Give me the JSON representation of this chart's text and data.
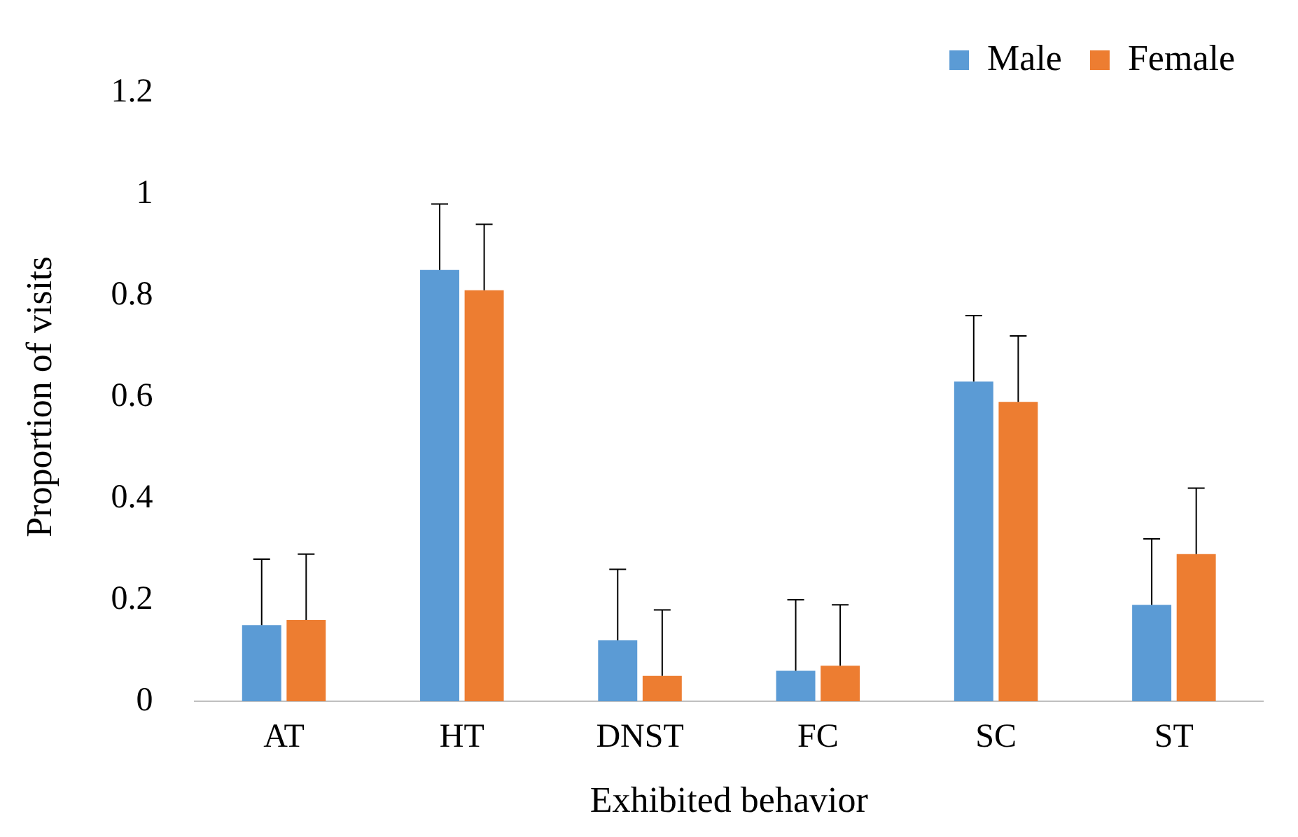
{
  "chart_data": {
    "type": "bar",
    "xlabel": "Exhibited behavior",
    "ylabel": "Proportion of visits",
    "categories": [
      "AT",
      "HT",
      "DNST",
      "FC",
      "SC",
      "ST"
    ],
    "series": [
      {
        "name": "Male",
        "color": "#5b9bd5",
        "values": [
          0.15,
          0.85,
          0.12,
          0.06,
          0.63,
          0.19
        ],
        "errors": [
          [
            0.15,
            0.28
          ],
          [
            0.85,
            0.98
          ],
          [
            0.12,
            0.26
          ],
          [
            0.06,
            0.2
          ],
          [
            0.63,
            0.76
          ],
          [
            0.19,
            0.32
          ]
        ]
      },
      {
        "name": "Female",
        "color": "#ed7d31",
        "values": [
          0.16,
          0.81,
          0.05,
          0.07,
          0.59,
          0.29
        ],
        "errors": [
          [
            0.16,
            0.29
          ],
          [
            0.81,
            0.94
          ],
          [
            0.05,
            0.18
          ],
          [
            0.07,
            0.19
          ],
          [
            0.59,
            0.72
          ],
          [
            0.29,
            0.42
          ]
        ]
      }
    ],
    "ylim": [
      0,
      1.2
    ],
    "yticks": [
      0,
      0.2,
      0.4,
      0.6,
      0.8,
      1,
      1.2
    ],
    "grid": false,
    "legend": "top right"
  }
}
